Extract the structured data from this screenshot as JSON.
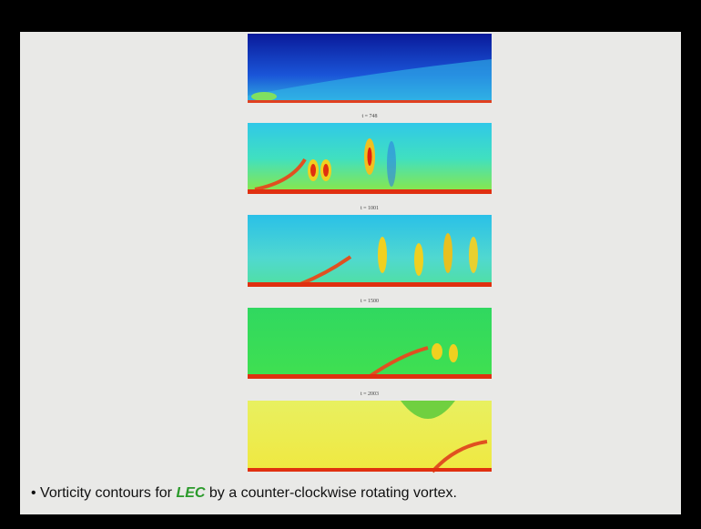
{
  "panels": [
    {
      "label": "t = 748"
    },
    {
      "label": "t = 1001"
    },
    {
      "label": "t = 1500"
    },
    {
      "label": "t = 2003"
    }
  ],
  "caption": {
    "prefix": "• Vorticity contours for ",
    "highlight": "LEC",
    "suffix": " by a counter-clockwise rotating vortex."
  }
}
